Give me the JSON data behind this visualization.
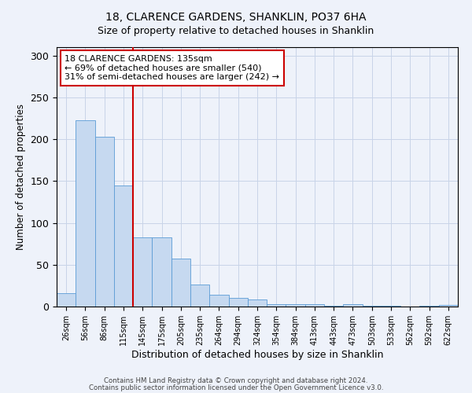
{
  "title": "18, CLARENCE GARDENS, SHANKLIN, PO37 6HA",
  "subtitle": "Size of property relative to detached houses in Shanklin",
  "xlabel": "Distribution of detached houses by size in Shanklin",
  "ylabel": "Number of detached properties",
  "bar_labels": [
    "26sqm",
    "56sqm",
    "86sqm",
    "115sqm",
    "145sqm",
    "175sqm",
    "205sqm",
    "235sqm",
    "264sqm",
    "294sqm",
    "324sqm",
    "354sqm",
    "384sqm",
    "413sqm",
    "443sqm",
    "473sqm",
    "503sqm",
    "533sqm",
    "562sqm",
    "592sqm",
    "622sqm"
  ],
  "bar_heights": [
    16,
    223,
    203,
    145,
    83,
    83,
    57,
    26,
    14,
    10,
    8,
    3,
    3,
    3,
    1,
    3,
    1,
    1,
    0,
    1,
    2
  ],
  "bar_color": "#c6d9f0",
  "bar_edge_color": "#5b9bd5",
  "vline_x": 3.5,
  "vline_color": "#cc0000",
  "annotation_text": "18 CLARENCE GARDENS: 135sqm\n← 69% of detached houses are smaller (540)\n31% of semi-detached houses are larger (242) →",
  "annotation_box_color": "#ffffff",
  "annotation_box_edge": "#cc0000",
  "ylim": [
    0,
    310
  ],
  "yticks": [
    0,
    50,
    100,
    150,
    200,
    250,
    300
  ],
  "grid_color": "#c8d4e8",
  "background_color": "#eef2fa",
  "footer1": "Contains HM Land Registry data © Crown copyright and database right 2024.",
  "footer2": "Contains public sector information licensed under the Open Government Licence v3.0."
}
